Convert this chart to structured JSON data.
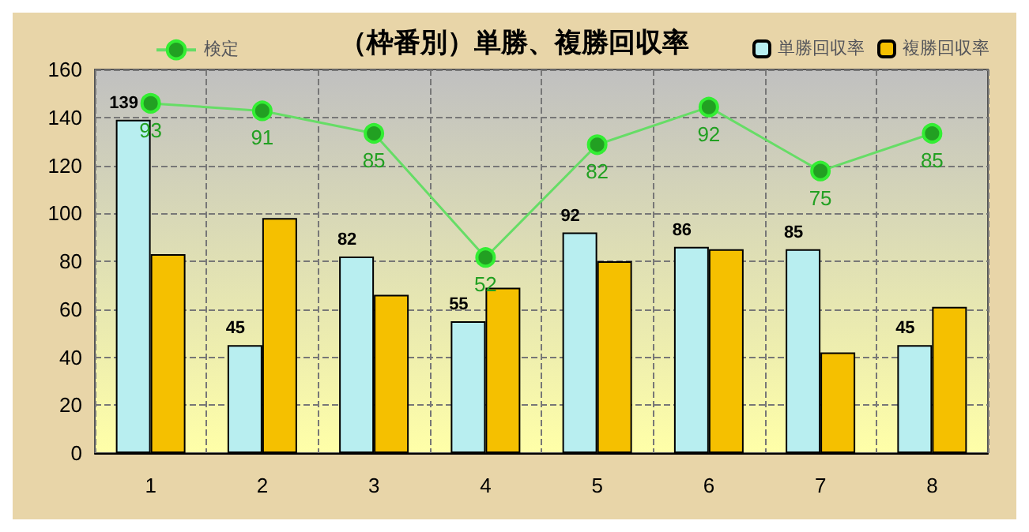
{
  "chart_data": {
    "type": "bar",
    "title": "（枠番別）単勝、複勝回収率",
    "categories": [
      "1",
      "2",
      "3",
      "4",
      "5",
      "6",
      "7",
      "8"
    ],
    "ylim": [
      0,
      160
    ],
    "yticks": [
      0,
      20,
      40,
      60,
      80,
      100,
      120,
      140,
      160
    ],
    "y2lim": [
      0,
      102
    ],
    "grid": true,
    "legend": "top",
    "series": [
      {
        "name": "単勝回収率",
        "color": "#b8eef0",
        "values": [
          139,
          45,
          82,
          55,
          92,
          86,
          85,
          45
        ],
        "value_labels": [
          "139",
          "45",
          "82",
          "55",
          "92",
          "86",
          "85",
          "45"
        ]
      },
      {
        "name": "複勝回収率",
        "color": "#f5c000",
        "values": [
          83,
          98,
          66,
          69,
          80,
          85,
          42,
          61
        ]
      },
      {
        "name": "検定",
        "type": "line",
        "axis": "y2",
        "color": "#22a022",
        "marker": "circle",
        "values": [
          93,
          91,
          85,
          52,
          82,
          92,
          75,
          85
        ],
        "value_labels": [
          "93",
          "91",
          "85",
          "52",
          "82",
          "92",
          "75",
          "85"
        ]
      }
    ]
  }
}
